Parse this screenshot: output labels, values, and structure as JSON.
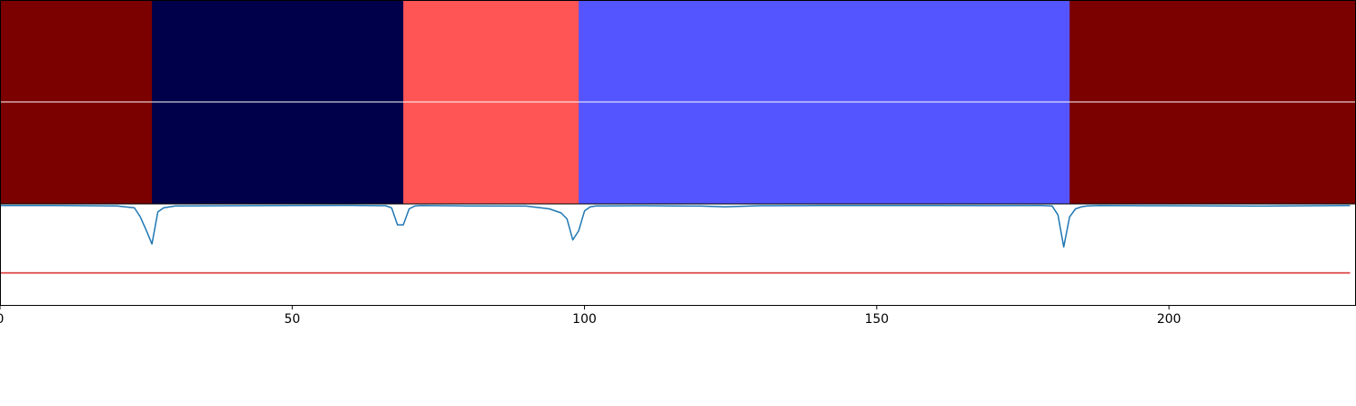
{
  "chart_data": [
    {
      "type": "heatmap",
      "title": "",
      "rows": 2,
      "segments": [
        {
          "start": 0,
          "end": 26,
          "color": "#7b0000"
        },
        {
          "start": 26,
          "end": 69,
          "color": "#00004a"
        },
        {
          "start": 69,
          "end": 99,
          "color": "#ff5555"
        },
        {
          "start": 99,
          "end": 183,
          "color": "#5555ff"
        },
        {
          "start": 183,
          "end": 232,
          "color": "#7b0000"
        }
      ],
      "row_separator_color": "#ffffff",
      "xlim": [
        0,
        232
      ]
    },
    {
      "type": "line",
      "title": "",
      "xlabel": "",
      "ylabel": "",
      "xlim": [
        0,
        232
      ],
      "ylim": [
        -1.0,
        0.01
      ],
      "x_ticks": [
        0,
        50,
        100,
        150,
        200
      ],
      "x_tick_labels": [
        "0",
        "50",
        "100",
        "150",
        "200"
      ],
      "series": [
        {
          "color": "#1f77b4",
          "x": [
            0,
            10,
            20,
            23,
            24,
            25,
            26,
            27,
            28,
            30,
            40,
            50,
            60,
            66,
            67,
            68,
            69,
            70,
            71,
            72,
            80,
            90,
            94,
            96,
            97,
            98,
            99,
            100,
            101,
            102,
            110,
            120,
            124,
            130,
            140,
            150,
            160,
            170,
            178,
            180,
            181,
            182,
            183,
            184,
            185,
            186,
            188,
            200,
            215,
            231
          ],
          "y": [
            -0.005,
            -0.006,
            -0.01,
            -0.03,
            -0.12,
            -0.25,
            -0.39,
            -0.07,
            -0.03,
            -0.01,
            -0.008,
            -0.006,
            -0.004,
            -0.008,
            -0.03,
            -0.2,
            -0.2,
            -0.04,
            -0.01,
            -0.005,
            -0.01,
            -0.012,
            -0.04,
            -0.08,
            -0.14,
            -0.35,
            -0.26,
            -0.06,
            -0.02,
            -0.01,
            -0.008,
            -0.012,
            -0.02,
            -0.008,
            -0.006,
            -0.005,
            -0.006,
            -0.007,
            -0.005,
            -0.01,
            -0.1,
            -0.42,
            -0.12,
            -0.04,
            -0.02,
            -0.01,
            -0.006,
            -0.008,
            -0.012,
            -0.005
          ]
        },
        {
          "color": "#d62728",
          "x": [
            0,
            231
          ],
          "y": [
            -0.68,
            -0.68
          ]
        }
      ]
    }
  ]
}
